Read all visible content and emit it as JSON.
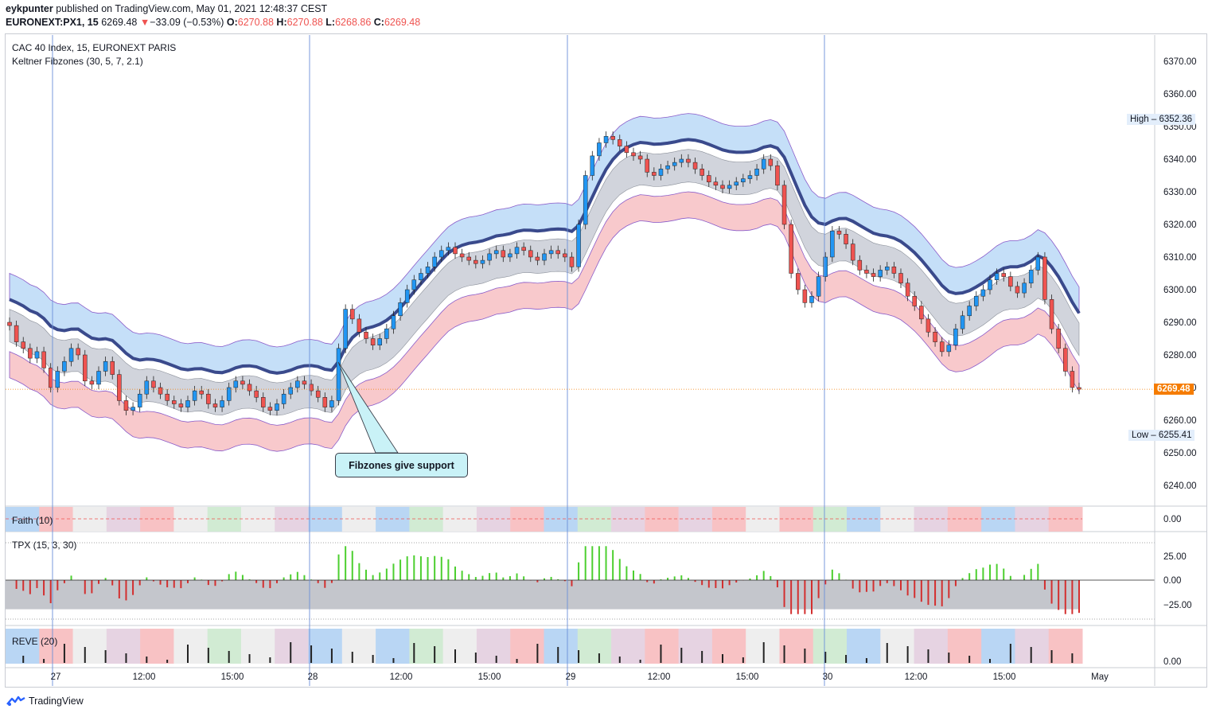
{
  "publisher": {
    "user": "eykpunter",
    "text": "published on TradingView.com, May 01, 2021 12:48:37 CEST"
  },
  "ticker": {
    "symbol": "EURONEXT:PX1, 15",
    "last": "6269.48",
    "arrow": "▼",
    "change": "−33.09 (−0.53%)",
    "o_label": "O:",
    "o": "6270.88",
    "h_label": "H:",
    "h": "6270.88",
    "l_label": "L:",
    "l": "6268.86",
    "c_label": "C:",
    "c": "6269.48"
  },
  "legend": {
    "main": "CAC 40 Index, 15, EURONEXT PARIS",
    "indicator": "Keltner Fibzones (30, 5, 7, 2.1)"
  },
  "annotation": {
    "text": "Fibzones give support"
  },
  "price_badges": {
    "high_label": "High",
    "high": "6352.36",
    "low_label": "Low",
    "low": "6255.41",
    "last": "6269.48"
  },
  "panes": {
    "faith": {
      "title": "Faith (10)",
      "ticks": [
        "0.00"
      ]
    },
    "tpx": {
      "title": "TPX (15, 3, 30)",
      "ticks": [
        "25.00",
        "0.00",
        "−25.00"
      ]
    },
    "reve": {
      "title": "REVE (20)",
      "ticks": [
        "0.00"
      ]
    }
  },
  "footer": {
    "brand": "TradingView"
  },
  "colors": {
    "candle_up": "#2196f3",
    "candle_down": "#ef5350",
    "zone_top": "#c5dff8",
    "zone_mid": "#d1d4dc",
    "zone_bottom": "#f8c9cc",
    "bull_cloud": "#7cfc6e",
    "bear_cloud": "#ec6ef0",
    "fib_line": "#3a4a8c",
    "faith_blue": "#b9d6f4",
    "faith_red": "#f8c2c4",
    "faith_green": "#d1ebd3",
    "faith_purple": "#e6d3e2",
    "faith_grey": "#eeeeee"
  },
  "chart_data": {
    "type": "candlestick",
    "title": "CAC 40 Index, 15, EURONEXT PARIS",
    "y_ticks": [
      "6370.00",
      "6360.00",
      "6350.00",
      "6340.00",
      "6330.00",
      "6320.00",
      "6310.00",
      "6300.00",
      "6290.00",
      "6280.00",
      "6270.00",
      "6260.00",
      "6250.00",
      "6240.00"
    ],
    "x_ticks": [
      "27",
      "12:00",
      "15:00",
      "28",
      "12:00",
      "15:00",
      "29",
      "12:00",
      "15:00",
      "30",
      "12:00",
      "15:00",
      "May"
    ],
    "ylim": [
      6234,
      6378
    ],
    "grid": false,
    "sessions": [
      {
        "day": "27",
        "open": 6288,
        "close": 6264,
        "high": 6290,
        "low": 6258
      },
      {
        "day": "28",
        "open": 6266,
        "close": 6312,
        "high": 6316,
        "low": 6262
      },
      {
        "day": "29",
        "open": 6307,
        "close": 6338,
        "high": 6352.36,
        "low": 6305
      },
      {
        "day": "30",
        "open": 6334,
        "close": 6269.48,
        "high": 6334,
        "low": 6255.41
      }
    ],
    "close": [
      6289,
      6284,
      6282,
      6279,
      6281,
      6276,
      6270,
      6275,
      6278,
      6282,
      6280,
      6272,
      6271,
      6275,
      6278,
      6274,
      6266,
      6263,
      6264,
      6268,
      6272,
      6270,
      6268,
      6266,
      6265,
      6264,
      6266,
      6269,
      6268,
      6265,
      6264,
      6266,
      6270,
      6272,
      6271,
      6269,
      6267,
      6264,
      6263,
      6265,
      6268,
      6270,
      6272,
      6271,
      6269,
      6267,
      6264,
      6266,
      6282,
      6294,
      6291,
      6287,
      6285,
      6283,
      6285,
      6288,
      6292,
      6296,
      6300,
      6303,
      6305,
      6307,
      6310,
      6312,
      6313,
      6311,
      6310,
      6309,
      6308,
      6309,
      6311,
      6312,
      6310,
      6311,
      6313,
      6312,
      6310,
      6309,
      6311,
      6312,
      6311,
      6310,
      6307,
      6320,
      6335,
      6341,
      6345,
      6347,
      6346,
      6344,
      6342,
      6341,
      6340,
      6336,
      6335,
      6337,
      6338,
      6339,
      6340,
      6339,
      6337,
      6335,
      6333,
      6332,
      6331,
      6332,
      6333,
      6334,
      6335,
      6337,
      6340,
      6338,
      6332,
      6320,
      6305,
      6300,
      6296,
      6298,
      6304,
      6310,
      6318,
      6317,
      6314,
      6309,
      6306,
      6305,
      6304,
      6306,
      6307,
      6305,
      6302,
      6298,
      6295,
      6291,
      6287,
      6284,
      6281,
      6283,
      6288,
      6292,
      6295,
      6298,
      6300,
      6303,
      6305,
      6304,
      6301,
      6299,
      6302,
      6306,
      6310,
      6297,
      6288,
      6282,
      6275,
      6270,
      6269.48
    ],
    "tpx_ylim": [
      -40,
      40
    ],
    "faith_ylim": [
      -1,
      1
    ],
    "reve_ylim": [
      0,
      1
    ]
  }
}
